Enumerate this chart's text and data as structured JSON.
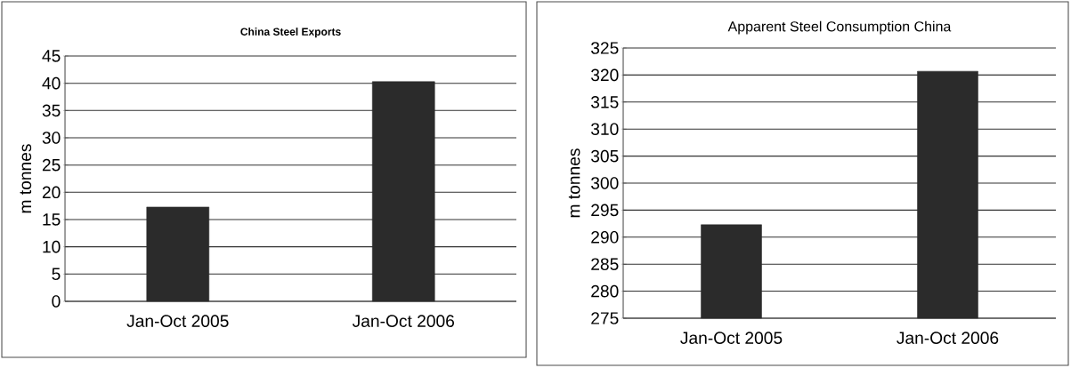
{
  "chart_data": [
    {
      "type": "bar",
      "title": "China Steel Exports",
      "ylabel": "m tonnes",
      "categories": [
        "Jan-Oct 2005",
        "Jan-Oct 2006"
      ],
      "values": [
        17.3,
        40.3
      ],
      "color": "#2b2b2b",
      "ylim": [
        0,
        45
      ],
      "yticks": [
        0,
        5,
        10,
        15,
        20,
        25,
        30,
        35,
        40,
        45
      ],
      "grid": "y"
    },
    {
      "type": "bar",
      "title": "Apparent Steel Consumption China",
      "ylabel": "m tonnes",
      "categories": [
        "Jan-Oct 2005",
        "Jan-Oct 2006"
      ],
      "values": [
        292.3,
        320.7
      ],
      "color": "#2b2b2b",
      "ylim": [
        275,
        325
      ],
      "yticks": [
        275,
        280,
        285,
        290,
        295,
        300,
        305,
        310,
        315,
        320,
        325
      ],
      "grid": "y"
    }
  ]
}
